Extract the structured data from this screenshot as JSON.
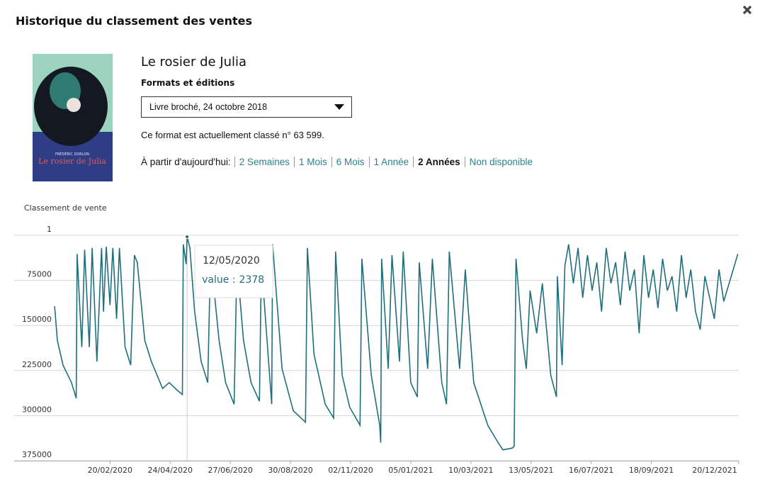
{
  "header": {
    "title": "Historique du classement des ventes"
  },
  "book": {
    "title": "Le rosier de Julia",
    "formats_label": "Formats et éditions",
    "format_selected": "Livre broché, 24 octobre 2018",
    "rank_text": "Ce format est actuellement classé n° 63 599.",
    "range_label": "À partir d'aujourd'hui:",
    "ranges": [
      "2 Semaines",
      "1 Mois",
      "6 Mois",
      "1 Année",
      "2 Années",
      "Non disponible"
    ],
    "active_range_index": 4
  },
  "cover": {
    "author": "FRÉDÉRIC DORLON",
    "title": "Le rosier de Julia"
  },
  "chart_data": {
    "type": "line",
    "y_label": "Classement de vente",
    "color": "#1f6f7d",
    "grid": true,
    "y_inverted": true,
    "ylim": [
      1,
      375000
    ],
    "yticks": [
      1,
      75000,
      150000,
      225000,
      300000,
      375000
    ],
    "xlim": [
      "10/11/2019",
      "20/12/2021"
    ],
    "xticks": [
      "20/02/2020",
      "24/04/2020",
      "27/06/2020",
      "30/08/2020",
      "02/11/2020",
      "05/01/2021",
      "10/03/2021",
      "13/05/2021",
      "16/07/2021",
      "18/09/2021",
      "20/12/2021"
    ],
    "x": [
      "23/12/2019",
      "26/12/2019",
      "01/01/2020",
      "10/01/2020",
      "15/01/2020",
      "16/01/2020",
      "21/01/2020",
      "24/01/2020",
      "29/01/2020",
      "01/02/2020",
      "06/02/2020",
      "11/02/2020",
      "13/02/2020",
      "16/02/2020",
      "20/02/2020",
      "23/02/2020",
      "27/02/2020",
      "01/03/2020",
      "07/03/2020",
      "13/03/2020",
      "17/03/2020",
      "20/03/2020",
      "28/03/2020",
      "04/04/2020",
      "16/04/2020",
      "23/04/2020",
      "01/05/2020",
      "07/05/2020",
      "08/05/2020",
      "11/05/2020",
      "12/05/2020",
      "15/05/2020",
      "20/05/2020",
      "27/05/2020",
      "03/06/2020",
      "06/06/2020",
      "15/06/2020",
      "22/06/2020",
      "01/07/2020",
      "04/07/2020",
      "11/07/2020",
      "19/07/2020",
      "28/07/2020",
      "30/07/2020",
      "10/08/2020",
      "11/08/2020",
      "21/08/2020",
      "02/09/2020",
      "15/09/2020",
      "17/09/2020",
      "24/09/2020",
      "06/10/2020",
      "15/10/2020",
      "17/10/2020",
      "24/10/2020",
      "01/11/2020",
      "12/11/2020",
      "14/11/2020",
      "24/11/2020",
      "03/12/2020",
      "04/12/2020",
      "05/12/2020",
      "12/12/2020",
      "16/12/2020",
      "24/12/2020",
      "28/12/2020",
      "05/01/2021",
      "12/01/2021",
      "14/01/2021",
      "23/01/2021",
      "28/01/2021",
      "07/02/2021",
      "12/02/2021",
      "15/02/2021",
      "26/02/2021",
      "04/03/2021",
      "13/03/2021",
      "28/03/2021",
      "08/04/2021",
      "13/04/2021",
      "23/04/2021",
      "25/04/2021",
      "27/04/2021",
      "04/05/2021",
      "08/05/2021",
      "12/05/2021",
      "19/05/2021",
      "25/05/2021",
      "03/06/2021",
      "09/06/2021",
      "10/06/2021",
      "15/06/2021",
      "18/06/2021",
      "22/06/2021",
      "27/06/2021",
      "02/07/2021",
      "07/07/2021",
      "12/07/2021",
      "17/07/2021",
      "22/07/2021",
      "27/07/2021",
      "01/08/2021",
      "06/08/2021",
      "11/08/2021",
      "16/08/2021",
      "21/08/2021",
      "26/08/2021",
      "31/08/2021",
      "05/09/2021",
      "10/09/2021",
      "15/09/2021",
      "20/09/2021",
      "25/09/2021",
      "30/09/2021",
      "05/10/2021",
      "10/10/2021",
      "15/10/2021",
      "20/10/2021",
      "25/10/2021",
      "30/10/2021",
      "04/11/2021",
      "09/11/2021",
      "14/11/2021",
      "19/11/2021",
      "24/11/2021",
      "29/11/2021",
      "04/12/2021",
      "19/12/2021"
    ],
    "values": [
      118000,
      175000,
      216000,
      245000,
      271000,
      31000,
      186000,
      24000,
      186000,
      21000,
      210000,
      21000,
      127000,
      19000,
      116000,
      21000,
      139000,
      21000,
      186000,
      216000,
      33000,
      45000,
      175000,
      210000,
      255000,
      245000,
      257000,
      265000,
      15000,
      48000,
      2378,
      21000,
      127000,
      210000,
      245000,
      33000,
      175000,
      245000,
      281000,
      45000,
      175000,
      245000,
      276000,
      45000,
      281000,
      15000,
      222000,
      292000,
      311000,
      21000,
      198000,
      281000,
      304000,
      27000,
      233000,
      286000,
      316000,
      39000,
      233000,
      316000,
      345000,
      39000,
      222000,
      33000,
      210000,
      27000,
      245000,
      269000,
      45000,
      222000,
      39000,
      245000,
      281000,
      27000,
      222000,
      57000,
      245000,
      316000,
      345000,
      357000,
      354000,
      351000,
      39000,
      175000,
      222000,
      92000,
      163000,
      80000,
      233000,
      269000,
      68000,
      216000,
      51000,
      15000,
      80000,
      21000,
      104000,
      33000,
      92000,
      45000,
      127000,
      21000,
      80000,
      45000,
      116000,
      27000,
      92000,
      57000,
      163000,
      33000,
      104000,
      57000,
      121000,
      39000,
      92000,
      68000,
      127000,
      33000,
      104000,
      57000,
      127000,
      157000,
      68000,
      104000,
      139000,
      57000,
      110000,
      31000
    ],
    "tooltip": {
      "date": "12/05/2020",
      "label": "value :",
      "value": 2378
    }
  }
}
